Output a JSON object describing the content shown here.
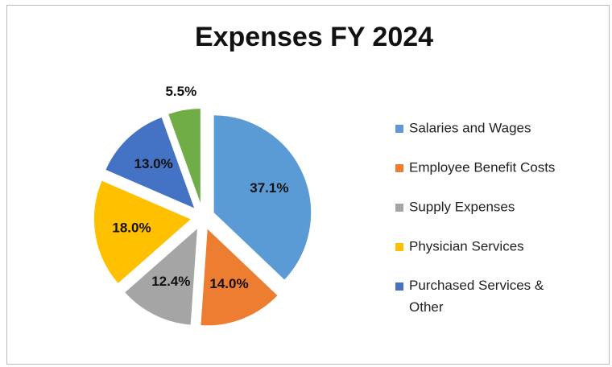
{
  "chart_data": {
    "type": "pie",
    "title": "Expenses FY 2024",
    "categories": [
      "Salaries and Wages",
      "Employee Benefit Costs",
      "Supply Expenses",
      "Physician Services",
      "Purchased Services & Other",
      null
    ],
    "values": [
      37.1,
      14.0,
      12.4,
      18.0,
      13.0,
      5.5
    ],
    "value_labels": [
      "37.1%",
      "14.0%",
      "12.4%",
      "18.0%",
      "13.0%",
      "5.5%"
    ],
    "colors": [
      "#5b9bd5",
      "#ed7d31",
      "#a5a5a5",
      "#ffc000",
      "#4472c4",
      "#70ad47"
    ],
    "legend": "right"
  }
}
